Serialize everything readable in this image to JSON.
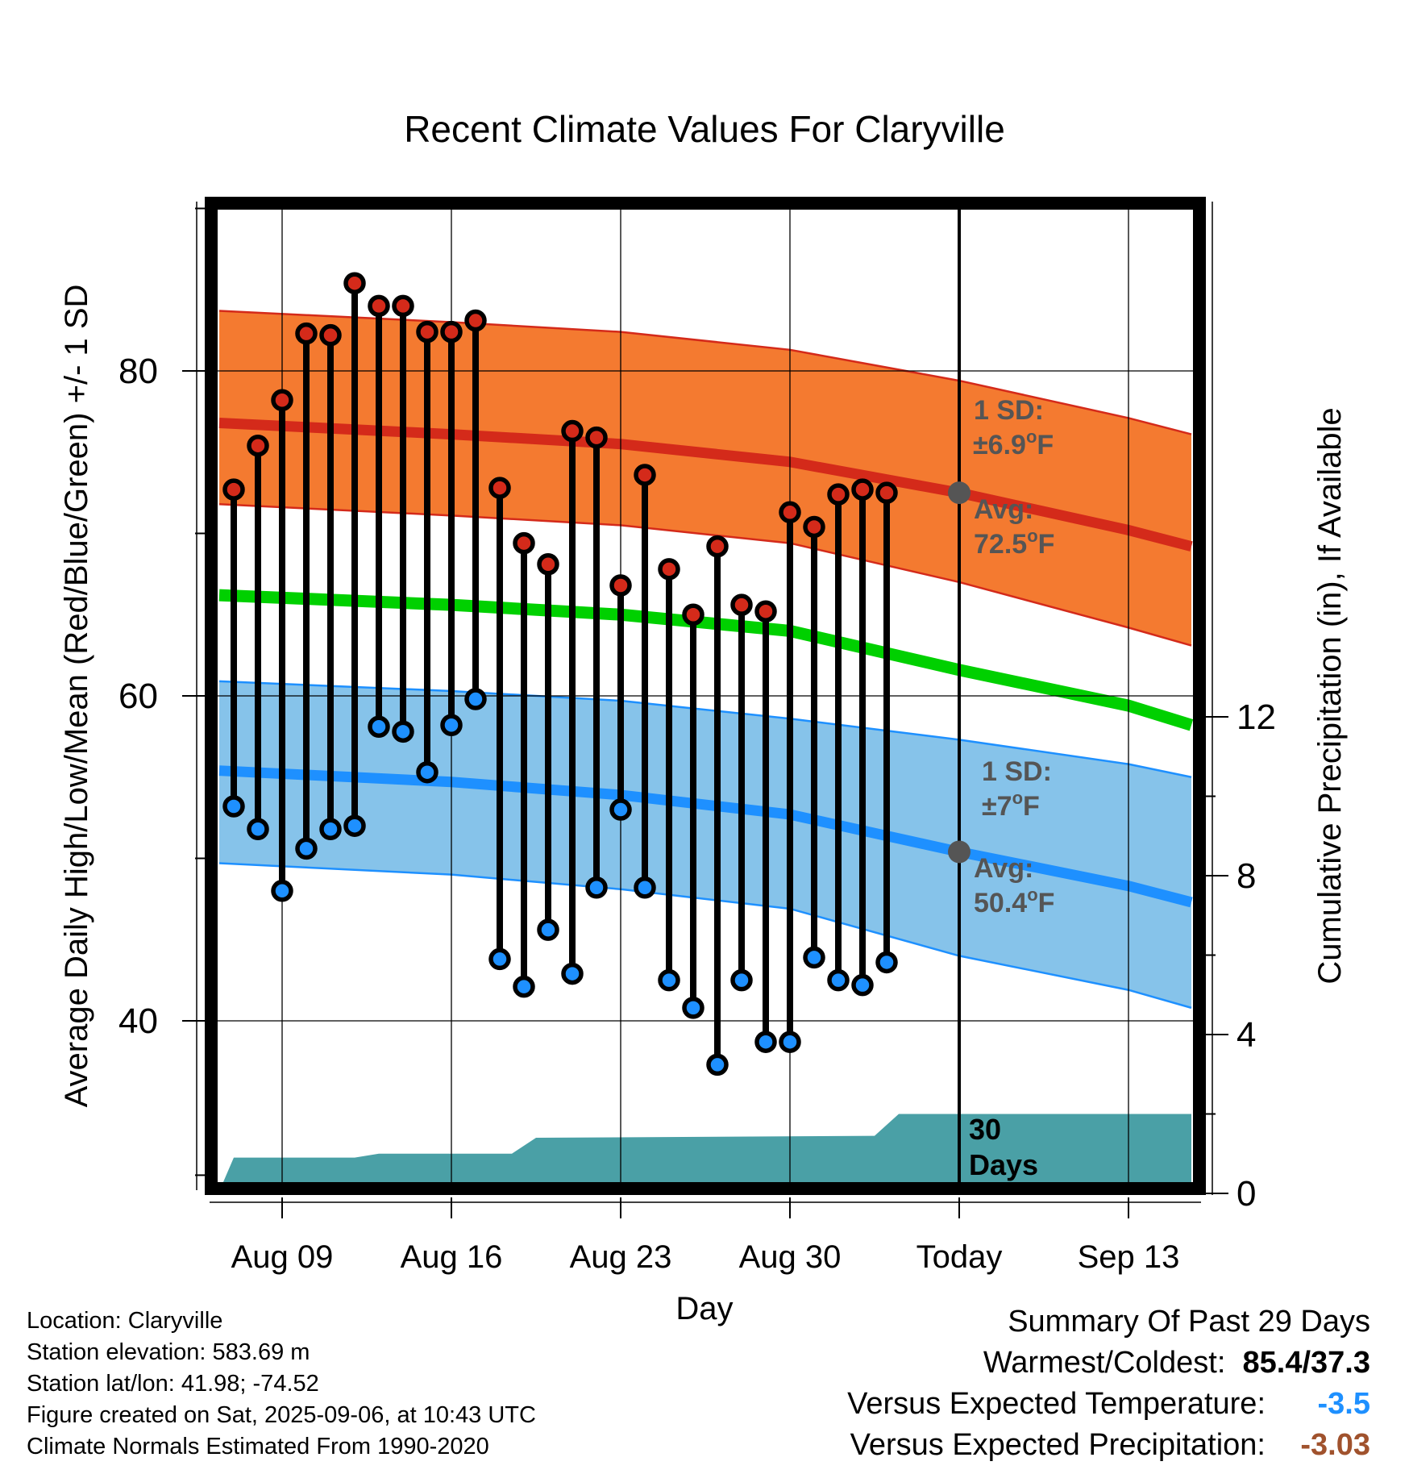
{
  "colors": {
    "high_band": "#f47a30",
    "high_band_edge": "#d42a1a",
    "high_avg_line": "#d42a1a",
    "low_band": "#86c3ea",
    "low_band_edge": "#1e90ff",
    "low_avg_line": "#1e90ff",
    "mean_line": "#00d000",
    "precip_fill": "#4aa0a6",
    "high_point": "#d42a1a",
    "low_point": "#1e90ff",
    "annotation": "#555555",
    "versus_temp": "#1e90ff",
    "versus_precip": "#a0522d"
  },
  "chart_data": {
    "type": "line",
    "title": "Recent Climate Values For Claryville",
    "xlabel": "Day",
    "ylabel": "Average Daily High/Low/Mean (Red/Blue/Green) +/- 1 SD",
    "y2label": "Cumulative Precipitation (in), If Available",
    "x_tick_labels": [
      {
        "day": 0,
        "label": "Aug 09"
      },
      {
        "day": 7,
        "label": "Aug 16"
      },
      {
        "day": 14,
        "label": "Aug 23"
      },
      {
        "day": 21,
        "label": "Aug 30"
      },
      {
        "day": 28,
        "label": "Today"
      },
      {
        "day": 35,
        "label": "Sep 13"
      }
    ],
    "xlim": [
      -3.3,
      37.6
    ],
    "ylim": [
      30.5,
      91
    ],
    "y_ticks": [
      40,
      60,
      80
    ],
    "y2lim": [
      0,
      24
    ],
    "y2_ticks": [
      0,
      4,
      8,
      12
    ],
    "grid": true,
    "today_day": 28,
    "normals": {
      "x": [
        -2.6,
        7,
        14,
        21,
        28,
        35,
        37.6
      ],
      "high_avg": [
        76.8,
        76.1,
        75.5,
        74.4,
        72.5,
        70.2,
        69.2
      ],
      "high_upper": [
        83.7,
        83.0,
        82.4,
        81.3,
        79.4,
        77.1,
        76.1
      ],
      "high_lower": [
        71.8,
        71.1,
        70.5,
        69.4,
        67.0,
        64.2,
        63.1
      ],
      "mean": [
        66.2,
        65.6,
        65.0,
        64.0,
        61.6,
        59.4,
        58.2
      ],
      "low_avg": [
        55.4,
        54.7,
        53.9,
        52.7,
        50.4,
        48.3,
        47.3
      ],
      "low_upper": [
        60.9,
        60.3,
        59.7,
        58.6,
        57.3,
        55.8,
        55.0
      ],
      "low_lower": [
        49.7,
        49.0,
        48.1,
        46.9,
        44.0,
        41.9,
        40.8
      ]
    },
    "series": [
      {
        "name": "High",
        "values": [
          72.7,
          75.4,
          78.2,
          82.3,
          82.2,
          85.4,
          84.0,
          84.0,
          82.4,
          82.4,
          83.1,
          72.8,
          69.4,
          68.1,
          76.3,
          75.9,
          66.8,
          73.6,
          67.8,
          65.0,
          69.2,
          65.6,
          65.2,
          71.3,
          70.4,
          72.4,
          72.7,
          72.5
        ]
      },
      {
        "name": "Low",
        "values": [
          53.2,
          51.8,
          48.0,
          50.6,
          51.8,
          52.0,
          58.1,
          57.8,
          55.3,
          58.2,
          59.8,
          43.8,
          42.1,
          45.6,
          42.9,
          48.2,
          53.0,
          48.2,
          42.5,
          40.8,
          37.3,
          42.5,
          38.7,
          38.7,
          43.9,
          42.5,
          42.2,
          43.6
        ]
      }
    ],
    "x": [
      -2,
      -1,
      0,
      1,
      2,
      3,
      4,
      5,
      6,
      7,
      8,
      9,
      10,
      11,
      12,
      13,
      14,
      15,
      16,
      17,
      18,
      19,
      20,
      21,
      22,
      23,
      24,
      25
    ],
    "precipitation_cumulative": {
      "x": [
        -2.6,
        -2.0,
        3.0,
        4.0,
        9.5,
        10.5,
        24.5,
        25.5,
        37.6
      ],
      "values": [
        0.05,
        0.9,
        0.9,
        1.0,
        1.0,
        1.4,
        1.45,
        2.0,
        2.0
      ]
    },
    "annotations": {
      "high_sd_label": "1 SD:",
      "high_sd_value": "±6.9",
      "high_avg_label": "Avg:",
      "high_avg_value": "72.5",
      "low_sd_label": "1 SD:",
      "low_sd_value": "±7",
      "low_avg_label": "Avg:",
      "low_avg_value": "50.4",
      "unit": "F",
      "degree": "o",
      "days_label_1": "30",
      "days_label_2": "Days"
    }
  },
  "footer": {
    "location": "Location: Claryville",
    "elevation": "Station elevation: 583.69 m",
    "latlon": "Station lat/lon: 41.98; -74.52",
    "created": "Figure created on Sat, 2025-09-06, at 10:43 UTC",
    "normals": "Climate Normals Estimated From 1990-2020"
  },
  "summary": {
    "title": "Summary Of Past 29 Days",
    "warmest_coldest_label": "Warmest/Coldest:",
    "warmest_coldest_value": "85.4/37.3",
    "versus_temp_label": "Versus Expected Temperature:",
    "versus_temp_value": "-3.5",
    "versus_precip_label": "Versus Expected Precipitation:",
    "versus_precip_value": "-3.03"
  }
}
